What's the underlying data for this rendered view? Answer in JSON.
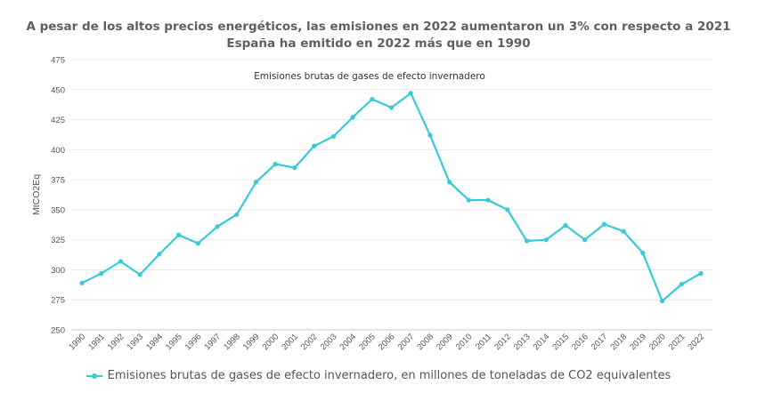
{
  "header": {
    "title_line1": "A pesar de los altos precios energéticos, las emisiones en 2022 aumentaron un 3% con respecto a 2021",
    "title_line2": "España ha emitido en 2022 más que en 1990"
  },
  "chart_data": {
    "type": "line",
    "title": "Emisiones brutas de gases de efecto invernadero",
    "ylabel": "MtCO2Eq",
    "xlabel": "",
    "ylim": [
      250,
      475
    ],
    "yticks": [
      250,
      275,
      300,
      325,
      350,
      375,
      400,
      425,
      450,
      475
    ],
    "grid": true,
    "legend_position": "bottom",
    "categories": [
      "1990",
      "1991",
      "1992",
      "1993",
      "1994",
      "1995",
      "1996",
      "1997",
      "1998",
      "1999",
      "2000",
      "2001",
      "2002",
      "2003",
      "2004",
      "2005",
      "2006",
      "2007",
      "2008",
      "2009",
      "2010",
      "2011",
      "2012",
      "2013",
      "2014",
      "2015",
      "2016",
      "2017",
      "2018",
      "2019",
      "2020",
      "2021",
      "2022"
    ],
    "series": [
      {
        "name": "Emisiones brutas de gases de efecto invernadero, en millones de toneladas de CO2 equivalentes",
        "color": "#36cbd6",
        "values": [
          289,
          297,
          307,
          296,
          313,
          329,
          322,
          336,
          346,
          373,
          388,
          385,
          403,
          411,
          427,
          442,
          435,
          447,
          412,
          373,
          358,
          358,
          350,
          324,
          325,
          337,
          325,
          338,
          332,
          314,
          274,
          288,
          297
        ]
      }
    ]
  }
}
